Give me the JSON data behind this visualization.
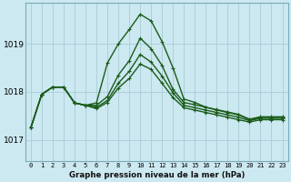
{
  "title": "Graphe pression niveau de la mer (hPa)",
  "bg_color": "#cce8f0",
  "grid_color": "#aaccd8",
  "line_color": "#1a5c1a",
  "xlim": [
    -0.5,
    23.5
  ],
  "ylim": [
    1016.55,
    1019.85
  ],
  "yticks": [
    1017,
    1018,
    1019
  ],
  "xticks": [
    0,
    1,
    2,
    3,
    4,
    5,
    6,
    7,
    8,
    9,
    10,
    11,
    12,
    13,
    14,
    15,
    16,
    17,
    18,
    19,
    20,
    21,
    22,
    23
  ],
  "series": [
    [
      1017.25,
      1017.95,
      1018.1,
      1018.1,
      1017.77,
      1017.72,
      1017.77,
      1018.6,
      1019.0,
      1019.3,
      1019.62,
      1019.48,
      1019.05,
      1018.5,
      1017.85,
      1017.78,
      1017.68,
      1017.62,
      1017.57,
      1017.52,
      1017.42,
      1017.47,
      1017.47,
      1017.47
    ],
    [
      1017.25,
      1017.95,
      1018.1,
      1018.1,
      1017.77,
      1017.72,
      1017.72,
      1017.9,
      1018.35,
      1018.65,
      1019.12,
      1018.9,
      1018.55,
      1018.05,
      1017.78,
      1017.73,
      1017.68,
      1017.63,
      1017.58,
      1017.53,
      1017.43,
      1017.48,
      1017.48,
      1017.48
    ],
    [
      1017.25,
      1017.95,
      1018.1,
      1018.1,
      1017.77,
      1017.72,
      1017.68,
      1017.82,
      1018.18,
      1018.43,
      1018.78,
      1018.62,
      1018.33,
      1017.98,
      1017.72,
      1017.67,
      1017.62,
      1017.57,
      1017.52,
      1017.47,
      1017.4,
      1017.45,
      1017.45,
      1017.45
    ],
    [
      1017.25,
      1017.95,
      1018.1,
      1018.1,
      1017.77,
      1017.72,
      1017.65,
      1017.78,
      1018.08,
      1018.28,
      1018.58,
      1018.47,
      1018.18,
      1017.88,
      1017.67,
      1017.62,
      1017.57,
      1017.52,
      1017.47,
      1017.42,
      1017.37,
      1017.42,
      1017.42,
      1017.42
    ]
  ]
}
